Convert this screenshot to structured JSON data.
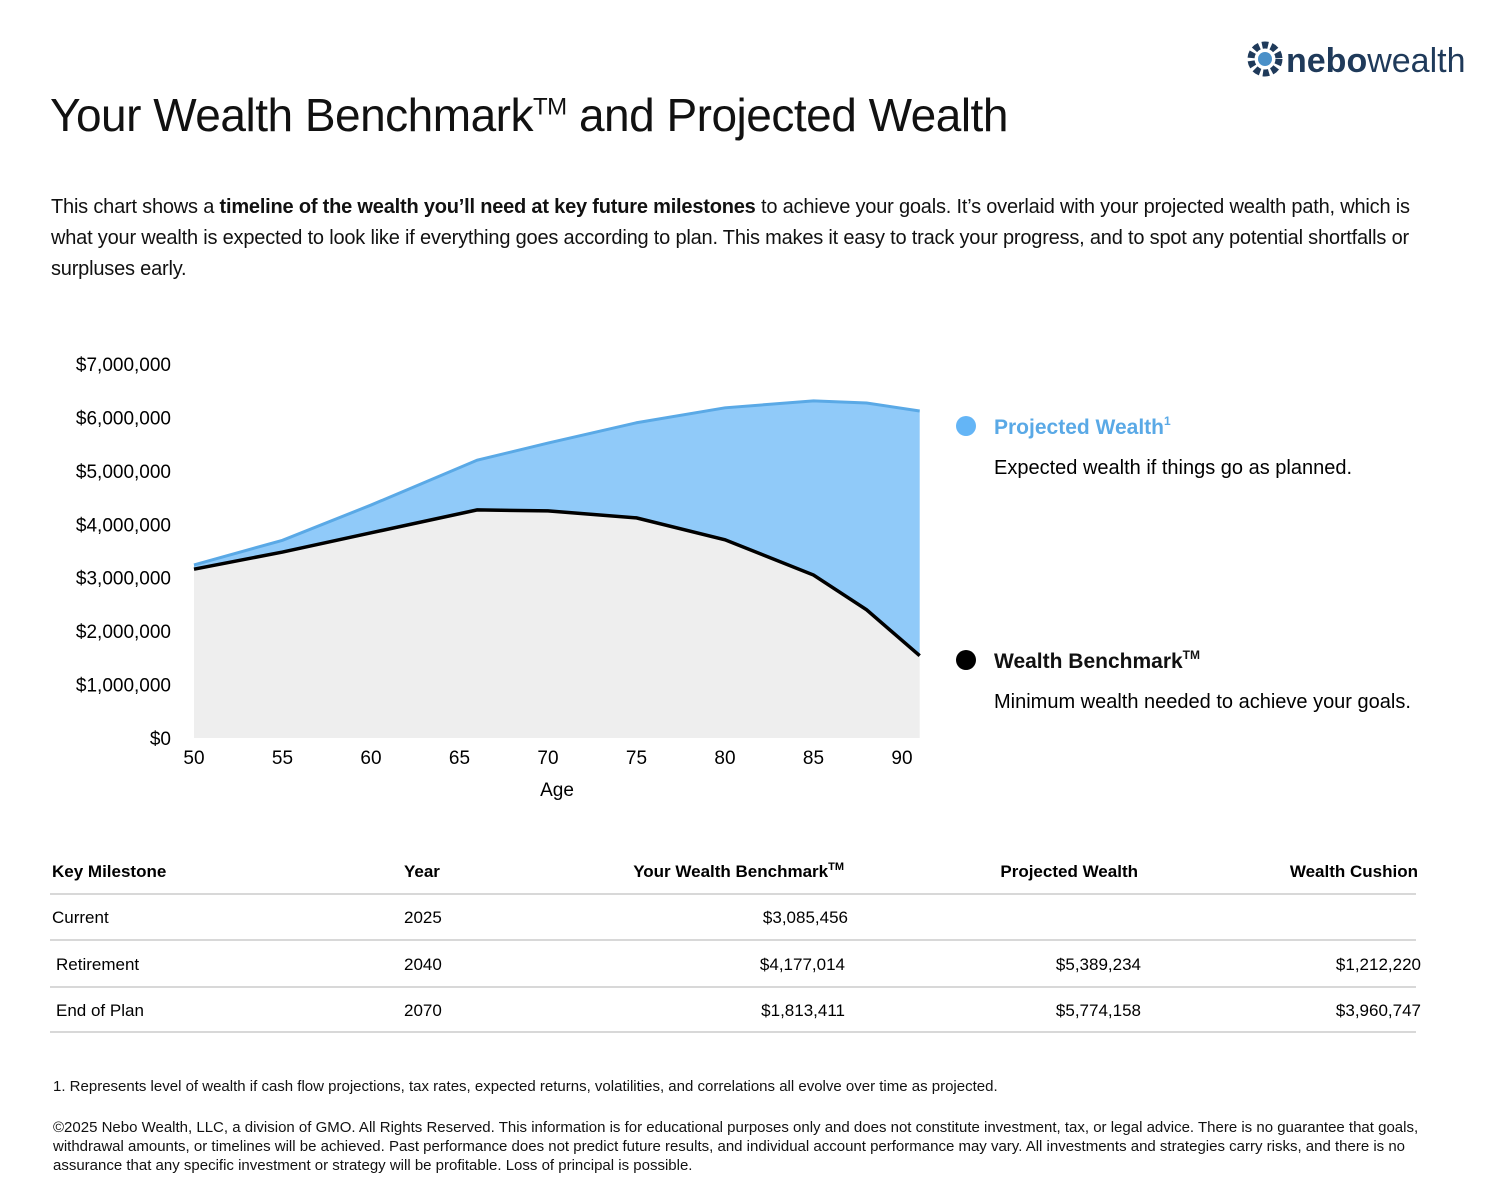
{
  "logo": {
    "bold": "nebo",
    "light": "wealth"
  },
  "header": {
    "title": "Your Wealth Benchmark",
    "title_sup": "TM",
    "title_rest": "and Projected Wealth"
  },
  "intro": [
    "This chart shows a ",
    "timeline of the wealth you’ll need at key future milestones",
    " to achieve your goals. It’s overlaid with your projected wealth path, which is what your wealth is expected to look like if everything goes according to plan. This makes it easy to track your progress, and to spot any potential shortfalls or surpluses early."
  ],
  "chart_data": {
    "type": "area",
    "x_label": "Age",
    "x": [
      50,
      55,
      60,
      66,
      70,
      75,
      80,
      85,
      88,
      91
    ],
    "series": [
      {
        "name": "Projected Wealth",
        "name_sup": "1",
        "description": "Expected wealth if things go as planned.",
        "color": "#5aa9e6",
        "fill": "#90caf9",
        "values": [
          3240000,
          3700000,
          4360000,
          5200000,
          5520000,
          5900000,
          6180000,
          6310000,
          6270000,
          6120000
        ]
      },
      {
        "name": "Wealth Benchmark",
        "name_sup": "TM",
        "description": "Minimum wealth needed to achieve your goals.",
        "color": "#000000",
        "fill": "#eeeeee",
        "values": [
          3160000,
          3480000,
          3840000,
          4270000,
          4250000,
          4120000,
          3710000,
          3050000,
          2400000,
          1540000
        ]
      }
    ],
    "xlim": [
      50,
      91
    ],
    "xticks": [
      50,
      55,
      60,
      65,
      70,
      75,
      80,
      85,
      90
    ],
    "ylim": [
      0,
      7000000
    ],
    "yticks": [
      {
        "value": 0,
        "label": "$0"
      },
      {
        "value": 1000000,
        "label": "$1,000,000"
      },
      {
        "value": 2000000,
        "label": "$2,000,000"
      },
      {
        "value": 3000000,
        "label": "$3,000,000"
      },
      {
        "value": 4000000,
        "label": "$4,000,000"
      },
      {
        "value": 5000000,
        "label": "$5,000,000"
      },
      {
        "value": 6000000,
        "label": "$6,000,000"
      },
      {
        "value": 7000000,
        "label": "$7,000,000"
      }
    ]
  },
  "table": {
    "headers": [
      "Key Milestone",
      "Year",
      {
        "text": "Your Wealth Benchmark",
        "sup": "TM"
      },
      "Projected Wealth",
      "Wealth Cushion"
    ],
    "rows": [
      [
        "Current",
        "2025",
        "$3,085,456",
        null,
        null
      ],
      [
        "Retirement",
        "2040",
        "$4,177,014",
        "$5,389,234",
        "$1,212,220"
      ],
      [
        "End of Plan",
        "2070",
        "$1,813,411",
        "$5,774,158",
        "$3,960,747"
      ]
    ]
  },
  "footnotes": {
    "note": "1. Represents level of wealth if cash flow projections, tax rates, expected returns, volatilities, and correlations all evolve over time as projected.",
    "legal": "©2025 Nebo Wealth, LLC, a division of GMO. All Rights Reserved. This information is for educational purposes only and does not constitute investment, tax, or legal advice. There is no guarantee that goals, withdrawal amounts, or timelines will be achieved. Past performance does not predict future results, and individual account performance may vary. All investments and strategies carry risks, and there is no assurance that any specific investment or strategy will be profitable. Loss of principal is possible."
  }
}
